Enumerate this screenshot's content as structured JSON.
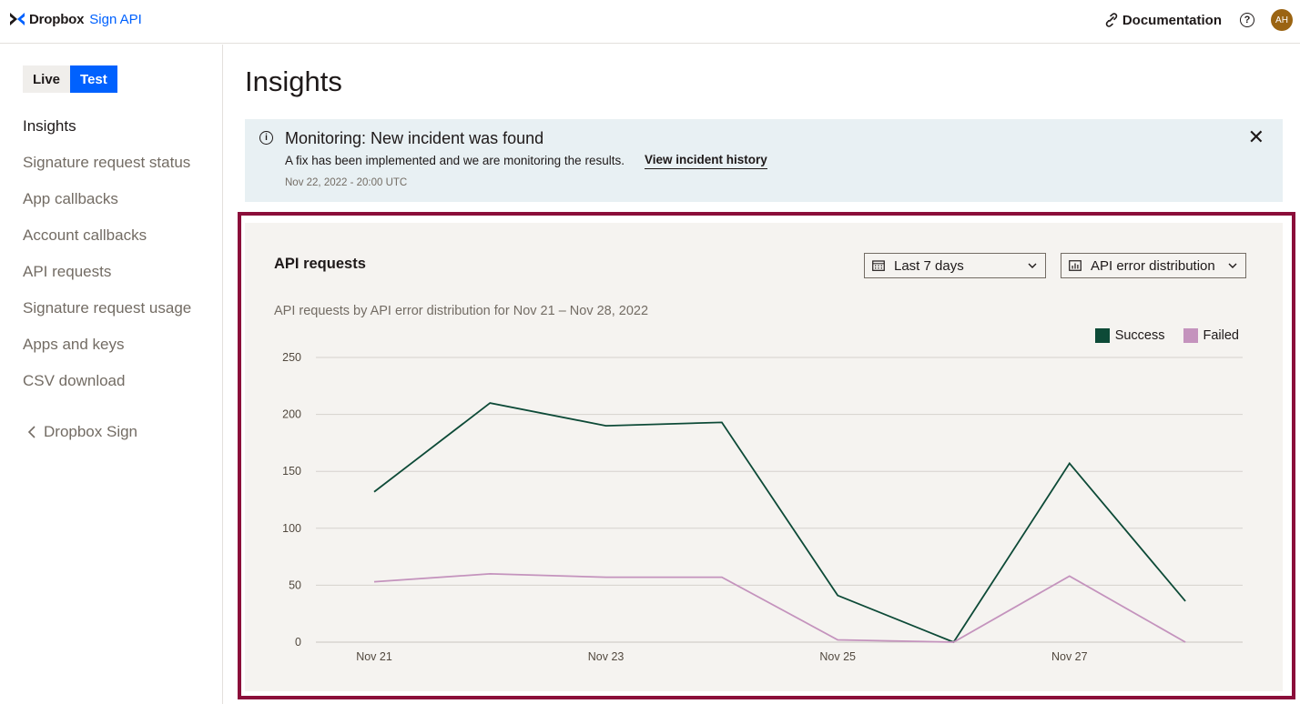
{
  "app": {
    "brand": "Dropbox",
    "brand_sub": "Sign API",
    "documentation_label": "Documentation",
    "help_label": "?",
    "avatar_initials": "AH"
  },
  "sidebar": {
    "env_live": "Live",
    "env_test": "Test",
    "items": [
      {
        "label": "Insights"
      },
      {
        "label": "Signature request status"
      },
      {
        "label": "App callbacks"
      },
      {
        "label": "Account callbacks"
      },
      {
        "label": "API requests"
      },
      {
        "label": "Signature request usage"
      },
      {
        "label": "Apps and keys"
      },
      {
        "label": "CSV download"
      }
    ],
    "back_label": "Dropbox Sign"
  },
  "page": {
    "title": "Insights"
  },
  "banner": {
    "title": "Monitoring: New incident was found",
    "message": "A fix has been implemented and we are monitoring the results.",
    "link": "View incident history",
    "timestamp": "Nov 22, 2022 - 20:00 UTC"
  },
  "card": {
    "title": "API requests",
    "range_select": "Last 7 days",
    "metric_select": "API error distribution",
    "subtitle": "API requests by API error distribution for Nov 21 – Nov 28, 2022"
  },
  "colors": {
    "success": "#0d4a37",
    "failed": "#c493bd",
    "accent": "#0061fe",
    "highlight": "#8b0e3a"
  },
  "chart_data": {
    "type": "line",
    "title": "API requests by API error distribution for Nov 21 – Nov 28, 2022",
    "xlabel": "",
    "ylabel": "",
    "x": [
      21,
      22,
      23,
      24,
      25,
      26,
      27,
      28
    ],
    "x_ticks": [
      21,
      23,
      25,
      27
    ],
    "x_tick_labels": [
      "Nov 21",
      "Nov 23",
      "Nov 25",
      "Nov 27"
    ],
    "ylim": [
      0,
      250
    ],
    "y_ticks": [
      0,
      50,
      100,
      150,
      200,
      250
    ],
    "grid": true,
    "legend_position": "top-right",
    "series": [
      {
        "name": "Success",
        "values": [
          132,
          210,
          190,
          193,
          41,
          0,
          157,
          36
        ]
      },
      {
        "name": "Failed",
        "values": [
          53,
          60,
          57,
          57,
          2,
          0,
          58,
          0
        ]
      }
    ]
  }
}
